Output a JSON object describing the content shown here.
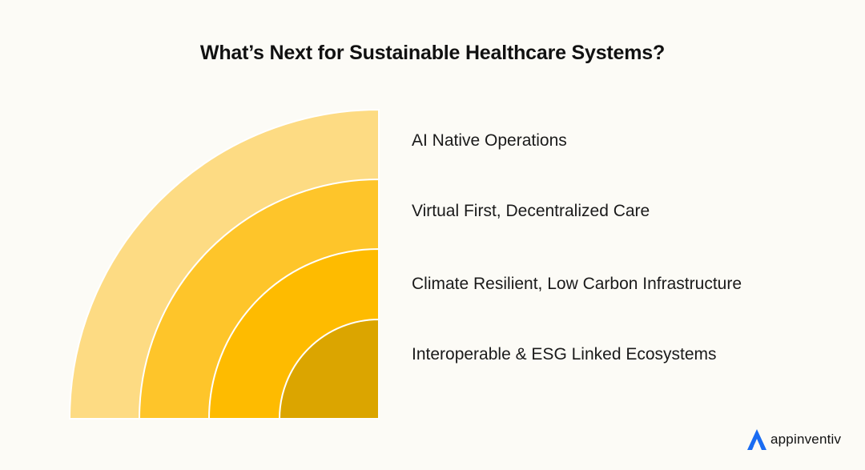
{
  "title": "What’s Next for Sustainable Healthcare Systems?",
  "layers": [
    {
      "label": "AI Native Operations",
      "color": "#fddb83"
    },
    {
      "label": "Virtual First, Decentralized Care",
      "color": "#fec52a"
    },
    {
      "label": "Climate Resilient, Low Carbon Infrastructure",
      "color": "#febb00"
    },
    {
      "label": "Interoperable & ESG Linked Ecosystems",
      "color": "#dba500"
    }
  ],
  "logo": {
    "text": "appinventiv",
    "icon": "appinventiv-logo-icon",
    "color": "#1a6cf2"
  }
}
